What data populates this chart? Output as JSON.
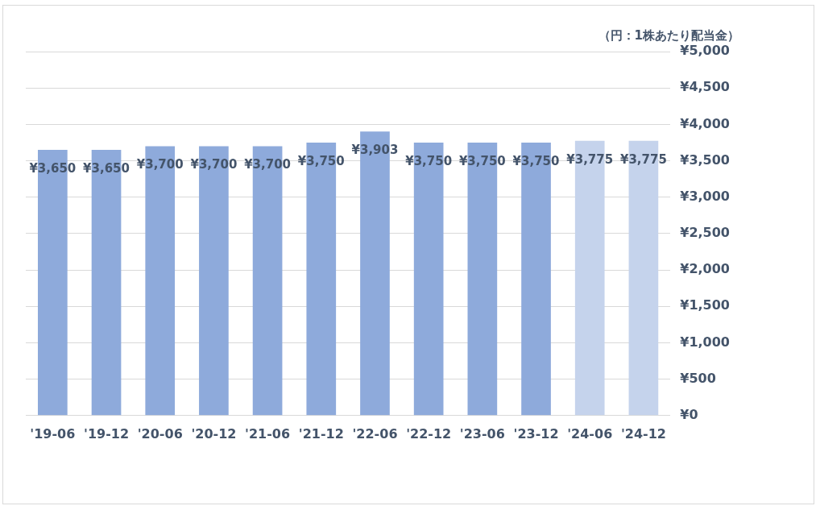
{
  "chart_data": {
    "type": "bar",
    "ylabel": "（円：1株あたり配当金）",
    "categories": [
      "'19-06",
      "'19-12",
      "'20-06",
      "'20-12",
      "'21-06",
      "'21-12",
      "'22-06",
      "'22-12",
      "'23-06",
      "'23-12",
      "'24-06",
      "'24-12"
    ],
    "values": [
      3650,
      3650,
      3700,
      3700,
      3700,
      3750,
      3903,
      3750,
      3750,
      3750,
      3775,
      3775
    ],
    "value_labels": [
      "¥3,650",
      "¥3,650",
      "¥3,700",
      "¥3,700",
      "¥3,700",
      "¥3,750",
      "¥3,903",
      "¥3,750",
      "¥3,750",
      "¥3,750",
      "¥3,775",
      "¥3,775"
    ],
    "colors": [
      "#8eaadb",
      "#8eaadb",
      "#8eaadb",
      "#8eaadb",
      "#8eaadb",
      "#8eaadb",
      "#8eaadb",
      "#8eaadb",
      "#8eaadb",
      "#8eaadb",
      "#c5d3ec",
      "#c5d3ec"
    ],
    "ylim": [
      0,
      5000
    ],
    "yticks": [
      {
        "value": 0,
        "label": "¥0"
      },
      {
        "value": 500,
        "label": "¥500"
      },
      {
        "value": 1000,
        "label": "¥1,000"
      },
      {
        "value": 1500,
        "label": "¥1,500"
      },
      {
        "value": 2000,
        "label": "¥2,000"
      },
      {
        "value": 2500,
        "label": "¥2,500"
      },
      {
        "value": 3000,
        "label": "¥3,000"
      },
      {
        "value": 3500,
        "label": "¥3,500"
      },
      {
        "value": 4000,
        "label": "¥4,000"
      },
      {
        "value": 4500,
        "label": "¥4,500"
      },
      {
        "value": 5000,
        "label": "¥5,000"
      }
    ],
    "grid": "y",
    "legend": false
  }
}
